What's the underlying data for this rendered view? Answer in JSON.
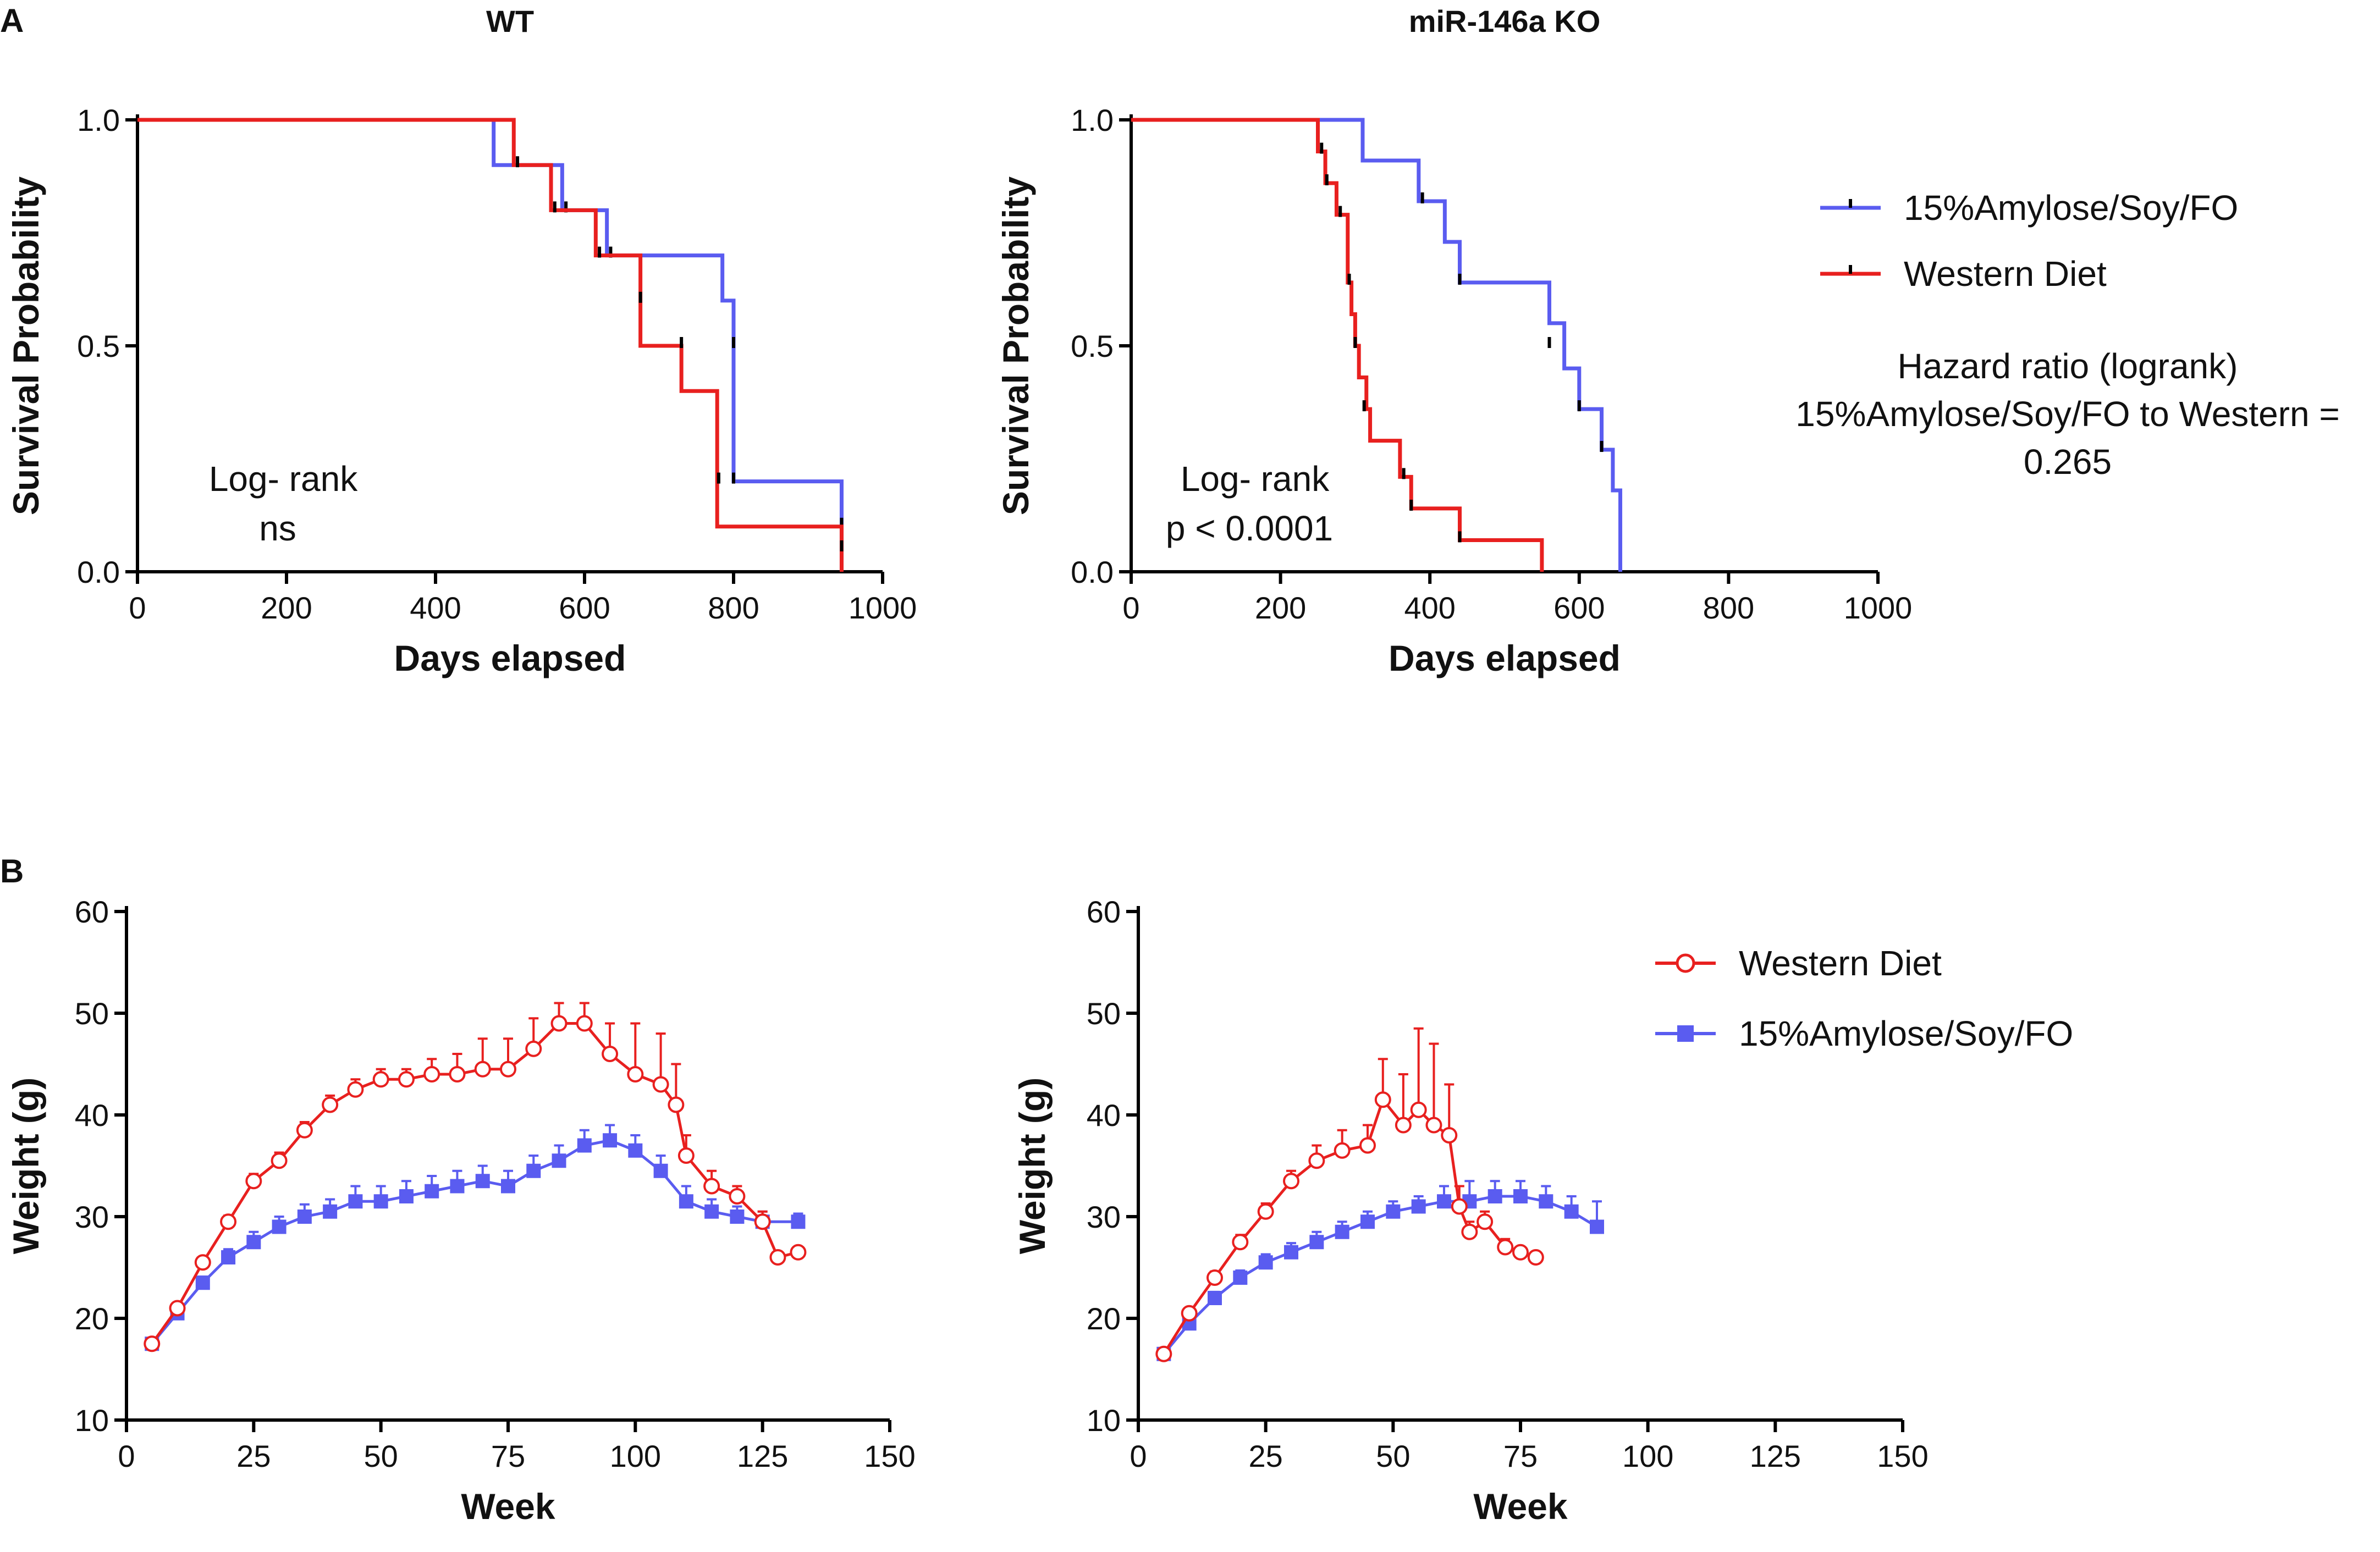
{
  "panels": {
    "a": "A",
    "b": "B"
  },
  "colors": {
    "blue": "#5a5cf0",
    "red": "#e8201f",
    "black": "#000000"
  },
  "chart_data": [
    {
      "id": "A-WT",
      "type": "line",
      "subtype": "kaplan-meier",
      "title": "WT",
      "xlabel": "Days elapsed",
      "ylabel": "Survival Probability",
      "xlim": [
        0,
        1000
      ],
      "ylim": [
        0,
        1.0
      ],
      "xticks": [
        "0",
        "200",
        "400",
        "600",
        "800",
        "1000"
      ],
      "yticks": [
        "0.0",
        "0.5",
        "1.0"
      ],
      "annotation": [
        "Log- rank",
        "ns"
      ],
      "series": [
        {
          "name": "15%Amylose/Soy/FO",
          "color": "#5a5cf0",
          "steps": [
            [
              0,
              1.0
            ],
            [
              478,
              0.9
            ],
            [
              570,
              0.8
            ],
            [
              630,
              0.7
            ],
            [
              785,
              0.6
            ],
            [
              800,
              0.2
            ],
            [
              945,
              0.0
            ]
          ],
          "censor": [
            [
              575,
              0.8
            ],
            [
              635,
              0.7
            ],
            [
              800,
              0.5
            ],
            [
              800,
              0.2
            ],
            [
              945,
              0.1
            ]
          ]
        },
        {
          "name": "Western Diet",
          "color": "#e8201f",
          "steps": [
            [
              0,
              1.0
            ],
            [
              505,
              0.9
            ],
            [
              555,
              0.8
            ],
            [
              615,
              0.7
            ],
            [
              675,
              0.5
            ],
            [
              730,
              0.4
            ],
            [
              778,
              0.1
            ],
            [
              945,
              0.0
            ]
          ],
          "censor": [
            [
              510,
              0.9
            ],
            [
              560,
              0.8
            ],
            [
              620,
              0.7
            ],
            [
              675,
              0.6
            ],
            [
              730,
              0.5
            ],
            [
              780,
              0.2
            ],
            [
              945,
              0.05
            ]
          ]
        }
      ]
    },
    {
      "id": "A-KO",
      "type": "line",
      "subtype": "kaplan-meier",
      "title": "miR-146a KO",
      "xlabel": "Days elapsed",
      "ylabel": "Survival Probability",
      "xlim": [
        0,
        1000
      ],
      "ylim": [
        0,
        1.0
      ],
      "xticks": [
        "0",
        "200",
        "400",
        "600",
        "800",
        "1000"
      ],
      "yticks": [
        "0.0",
        "0.5",
        "1.0"
      ],
      "annotation": [
        "Log- rank",
        "p < 0.0001"
      ],
      "series": [
        {
          "name": "15%Amylose/Soy/FO",
          "color": "#5a5cf0",
          "steps": [
            [
              0,
              1.0
            ],
            [
              310,
              0.91
            ],
            [
              385,
              0.82
            ],
            [
              420,
              0.73
            ],
            [
              440,
              0.64
            ],
            [
              560,
              0.55
            ],
            [
              580,
              0.45
            ],
            [
              600,
              0.36
            ],
            [
              630,
              0.27
            ],
            [
              645,
              0.18
            ],
            [
              655,
              0.0
            ]
          ],
          "censor": [
            [
              390,
              0.82
            ],
            [
              440,
              0.64
            ],
            [
              560,
              0.5
            ],
            [
              600,
              0.36
            ],
            [
              630,
              0.27
            ]
          ]
        },
        {
          "name": "Western Diet",
          "color": "#e8201f",
          "steps": [
            [
              0,
              1.0
            ],
            [
              250,
              0.93
            ],
            [
              260,
              0.86
            ],
            [
              275,
              0.79
            ],
            [
              290,
              0.64
            ],
            [
              295,
              0.57
            ],
            [
              300,
              0.5
            ],
            [
              305,
              0.43
            ],
            [
              315,
              0.36
            ],
            [
              320,
              0.29
            ],
            [
              360,
              0.21
            ],
            [
              375,
              0.14
            ],
            [
              440,
              0.07
            ],
            [
              550,
              0.0
            ]
          ],
          "censor": [
            [
              255,
              0.93
            ],
            [
              262,
              0.86
            ],
            [
              280,
              0.79
            ],
            [
              292,
              0.64
            ],
            [
              300,
              0.5
            ],
            [
              312,
              0.36
            ],
            [
              365,
              0.21
            ],
            [
              375,
              0.14
            ],
            [
              440,
              0.07
            ]
          ]
        }
      ]
    },
    {
      "id": "B-WT",
      "type": "line",
      "title": "",
      "xlabel": "Week",
      "ylabel": "Weight (g)",
      "xlim": [
        0,
        150
      ],
      "ylim": [
        10,
        60
      ],
      "xticks": [
        "0",
        "25",
        "50",
        "75",
        "100",
        "125",
        "150"
      ],
      "yticks": [
        "10",
        "20",
        "30",
        "40",
        "50",
        "60"
      ],
      "series": [
        {
          "name": "Western Diet",
          "color": "#e8201f",
          "marker": "open-circle",
          "x": [
            5,
            10,
            15,
            20,
            25,
            30,
            35,
            40,
            45,
            50,
            55,
            60,
            65,
            70,
            75,
            80,
            85,
            90,
            95,
            100,
            105,
            108,
            110,
            115,
            120,
            125,
            128,
            132
          ],
          "y": [
            17.5,
            21,
            25.5,
            29.5,
            33.5,
            35.5,
            38.5,
            41,
            42.5,
            43.5,
            43.5,
            44,
            44,
            44.5,
            44.5,
            46.5,
            49,
            49,
            46,
            44,
            43,
            41,
            36,
            33,
            32,
            29.5,
            26,
            26.5
          ],
          "err": [
            0.3,
            0.4,
            0.5,
            0.6,
            0.7,
            0.8,
            0.8,
            0.9,
            1,
            1,
            1,
            1.5,
            2,
            3,
            3,
            3,
            2,
            2,
            3,
            5,
            5,
            4,
            2,
            1.5,
            1,
            1,
            0.5,
            0.5
          ]
        },
        {
          "name": "15%Amylose/Soy/FO",
          "color": "#5a5cf0",
          "marker": "filled-square",
          "x": [
            5,
            10,
            15,
            20,
            25,
            30,
            35,
            40,
            45,
            50,
            55,
            60,
            65,
            70,
            75,
            80,
            85,
            90,
            95,
            100,
            105,
            110,
            115,
            120,
            125,
            132
          ],
          "y": [
            17.5,
            20.5,
            23.5,
            26,
            27.5,
            29,
            30,
            30.5,
            31.5,
            31.5,
            32,
            32.5,
            33,
            33.5,
            33,
            34.5,
            35.5,
            37,
            37.5,
            36.5,
            34.5,
            31.5,
            30.5,
            30,
            29.5,
            29.5
          ],
          "err": [
            0.3,
            0.4,
            0.6,
            0.8,
            1,
            1,
            1.2,
            1.2,
            1.5,
            1.5,
            1.5,
            1.5,
            1.5,
            1.5,
            1.5,
            1.5,
            1.5,
            1.5,
            1.5,
            1.5,
            1.5,
            1.5,
            1.2,
            1,
            1,
            0.8
          ]
        }
      ]
    },
    {
      "id": "B-KO",
      "type": "line",
      "title": "",
      "xlabel": "Week",
      "ylabel": "Weight (g)",
      "xlim": [
        0,
        150
      ],
      "ylim": [
        10,
        60
      ],
      "xticks": [
        "0",
        "25",
        "50",
        "75",
        "100",
        "125",
        "150"
      ],
      "yticks": [
        "10",
        "20",
        "30",
        "40",
        "50",
        "60"
      ],
      "series": [
        {
          "name": "Western Diet",
          "color": "#e8201f",
          "marker": "open-circle",
          "x": [
            5,
            10,
            15,
            20,
            25,
            30,
            35,
            40,
            45,
            48,
            52,
            55,
            58,
            61,
            63,
            65,
            68,
            72,
            75,
            78
          ],
          "y": [
            16.5,
            20.5,
            24,
            27.5,
            30.5,
            33.5,
            35.5,
            36.5,
            37,
            41.5,
            39,
            40.5,
            39,
            38,
            31,
            28.5,
            29.5,
            27,
            26.5,
            26
          ],
          "err": [
            0.3,
            0.5,
            0.6,
            0.7,
            0.8,
            1,
            1.5,
            2,
            2,
            4,
            5,
            8,
            8,
            5,
            2,
            1,
            1,
            0.8,
            0.5,
            0.4
          ]
        },
        {
          "name": "15%Amylose/Soy/FO",
          "color": "#5a5cf0",
          "marker": "filled-square",
          "x": [
            5,
            10,
            15,
            20,
            25,
            30,
            35,
            40,
            45,
            50,
            55,
            60,
            65,
            70,
            75,
            80,
            85,
            90
          ],
          "y": [
            16.5,
            19.5,
            22,
            24,
            25.5,
            26.5,
            27.5,
            28.5,
            29.5,
            30.5,
            31,
            31.5,
            31.5,
            32,
            32,
            31.5,
            30.5,
            29
          ],
          "err": [
            0.3,
            0.5,
            0.6,
            0.7,
            0.8,
            0.9,
            1,
            1,
            1,
            1,
            1,
            1.5,
            2,
            1.5,
            1.5,
            1.5,
            1.5,
            2.5
          ]
        }
      ]
    }
  ],
  "legend_a": {
    "items": [
      "15%Amylose/Soy/FO",
      "Western Diet"
    ],
    "hazard": [
      "Hazard ratio (logrank)",
      "15%Amylose/Soy/FO to Western =",
      "0.265"
    ]
  },
  "legend_b": {
    "items": [
      "Western Diet",
      "15%Amylose/Soy/FO"
    ]
  }
}
